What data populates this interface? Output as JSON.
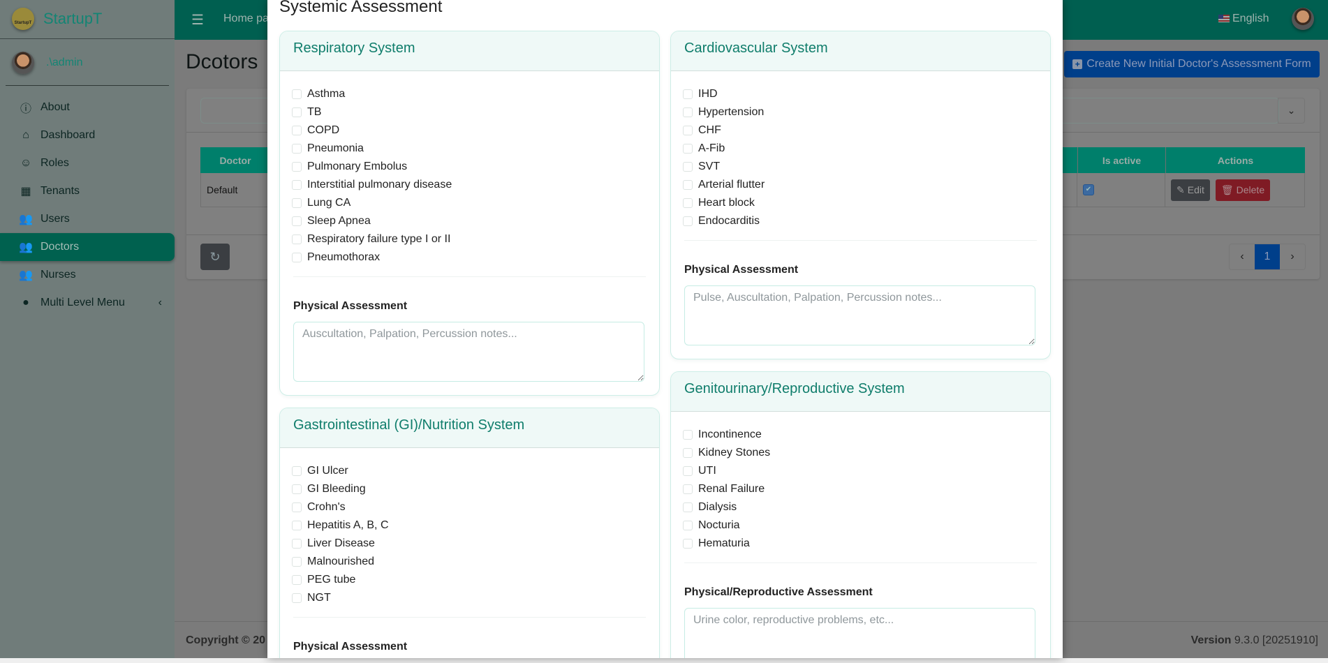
{
  "sidebar": {
    "brand": "StartupT",
    "logo_text": "StartupT",
    "user": ".\\admin",
    "items": [
      {
        "label": "About",
        "icon": "info-icon"
      },
      {
        "label": "Dashboard",
        "icon": "home-icon"
      },
      {
        "label": "Roles",
        "icon": "theater-masks-icon"
      },
      {
        "label": "Tenants",
        "icon": "building-icon"
      },
      {
        "label": "Users",
        "icon": "users-icon"
      },
      {
        "label": "Doctors",
        "icon": "users-icon",
        "active": true
      },
      {
        "label": "Nurses",
        "icon": "users-icon"
      },
      {
        "label": "Multi Level Menu",
        "icon": "circle-icon"
      }
    ]
  },
  "header": {
    "home": "Home page",
    "language": "English"
  },
  "page": {
    "title": "Dcotors",
    "create_button": "Create New Initial Doctor's Assessment Form"
  },
  "table": {
    "headers": {
      "doctor": "Doctor",
      "is_active": "Is active",
      "actions": "Actions"
    },
    "rows": [
      {
        "doctor": "Default",
        "is_active": true
      }
    ],
    "edit": "Edit",
    "delete": "Delete"
  },
  "pagination": {
    "current": "1"
  },
  "footer": {
    "copyright": "Copyright © 20",
    "version_label": "Version",
    "version": "9.3.0 [20251910]"
  },
  "modal": {
    "title": "Systemic Assessment",
    "respiratory": {
      "title": "Respiratory System",
      "items": [
        "Asthma",
        "TB",
        "COPD",
        "Pneumonia",
        "Pulmonary Embolus",
        "Interstitial pulmonary disease",
        "Lung CA",
        "Sleep Apnea",
        "Respiratory failure type I or II",
        "Pneumothorax"
      ],
      "label": "Physical Assessment",
      "placeholder": "Auscultation, Palpation, Percussion notes..."
    },
    "gi": {
      "title": "Gastrointestinal (GI)/Nutrition System",
      "items": [
        "GI Ulcer",
        "GI Bleeding",
        "Crohn's",
        "Hepatitis A, B, C",
        "Liver Disease",
        "Malnourished",
        "PEG tube",
        "NGT"
      ],
      "label": "Physical Assessment"
    },
    "cardio": {
      "title": "Cardiovascular System",
      "items": [
        "IHD",
        "Hypertension",
        "CHF",
        "A-Fib",
        "SVT",
        "Arterial flutter",
        "Heart block",
        "Endocarditis"
      ],
      "label": "Physical Assessment",
      "placeholder": "Pulse, Auscultation, Palpation, Percussion notes..."
    },
    "gu": {
      "title": "Genitourinary/Reproductive System",
      "items": [
        "Incontinence",
        "Kidney Stones",
        "UTI",
        "Renal Failure",
        "Dialysis",
        "Nocturia",
        "Hematuria"
      ],
      "label": "Physical/Reproductive Assessment",
      "placeholder": "Urine color, reproductive problems, etc..."
    }
  }
}
